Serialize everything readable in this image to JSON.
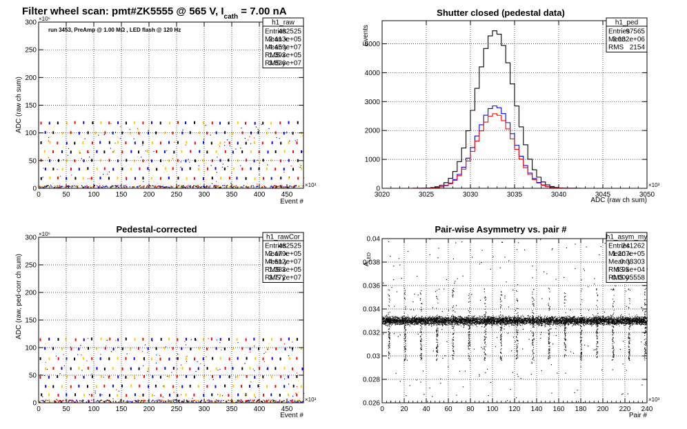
{
  "page": {
    "title_prefix": "Filter wheel scan: pmt#ZK5555 @   565 V, I",
    "title_sub": "cath",
    "title_suffix": " = 7.00 nA"
  },
  "chart_data": [
    {
      "id": "raw",
      "type": "scatter",
      "annotation": "run 3453, PreAmp @ 1.00 MΩ , LED flash @  120 Hz",
      "xlabel": "Event #",
      "ylabel": "ADC (raw ch sum)",
      "xlim": [
        0,
        480
      ],
      "ylim": [
        0,
        300
      ],
      "x_exponent": "×10³",
      "y_exponent": "×10⁶",
      "xticks": [
        0,
        50,
        100,
        150,
        200,
        250,
        300,
        350,
        400,
        450
      ],
      "yticks": [
        0,
        50,
        100,
        150,
        200,
        250,
        300
      ],
      "grid": true,
      "stats": {
        "name": "h1_raw",
        "rows": [
          [
            "Entries",
            "482525"
          ],
          [
            "Mean x",
            "2.413e+05"
          ],
          [
            "Mean y",
            "4.459e+07"
          ],
          [
            "RMS x",
            "1.393e+05"
          ],
          [
            "RMS y",
            "3.836e+07"
          ]
        ]
      },
      "levels": [
        118,
        100,
        82,
        66,
        50,
        35,
        18
      ],
      "period": 15.5,
      "series_colors": [
        "#ff0000",
        "#0000ff",
        "#000000",
        "#ffcc00"
      ]
    },
    {
      "id": "ped",
      "type": "histogram",
      "title": "Shutter closed (pedestal data)",
      "xlabel": "ADC (raw ch sum)",
      "ylabel": "Events",
      "xlim": [
        3020,
        3050
      ],
      "ylim": [
        0,
        5800
      ],
      "x_exponent": "×10³",
      "xticks": [
        3020,
        3025,
        3030,
        3035,
        3040,
        3045,
        3050
      ],
      "yticks": [
        0,
        1000,
        2000,
        3000,
        4000,
        5000
      ],
      "grid": true,
      "stats": {
        "name": "h1_ped",
        "rows": [
          [
            "Entries",
            "97565"
          ],
          [
            "Mean",
            "3.032e+06"
          ],
          [
            "RMS",
            "2154"
          ]
        ]
      },
      "series": [
        {
          "color": "#000000",
          "mean": 3032.8,
          "sigma": 2.15,
          "peak": 5450
        },
        {
          "color": "#0000ff",
          "mean": 3032.8,
          "sigma": 2.15,
          "peak": 2850
        },
        {
          "color": "#ff0000",
          "mean": 3032.8,
          "sigma": 2.15,
          "peak": 2580
        }
      ]
    },
    {
      "id": "rawCor",
      "type": "scatter",
      "title": "Pedestal-corrected",
      "xlabel": "Event #",
      "ylabel": "ADC (raw, ped-corr ch sum)",
      "xlim": [
        0,
        480
      ],
      "ylim": [
        0,
        300
      ],
      "x_exponent": "×10³",
      "y_exponent": "×10⁶",
      "xticks": [
        0,
        50,
        100,
        150,
        200,
        250,
        300,
        350,
        400,
        450
      ],
      "yticks": [
        0,
        50,
        100,
        150,
        200,
        250,
        300
      ],
      "grid": true,
      "stats": {
        "name": "h1_rawCor",
        "rows": [
          [
            "Entries",
            "482525"
          ],
          [
            "Mean x",
            "2.479e+05"
          ],
          [
            "Mean y",
            "4.612e+07"
          ],
          [
            "RMS x",
            "1.383e+05"
          ],
          [
            "RMS y",
            "3.772e+07"
          ]
        ]
      },
      "levels": [
        115,
        98,
        80,
        62,
        47,
        30,
        14
      ],
      "period": 15.5,
      "series_colors": [
        "#ff0000",
        "#0000ff",
        "#000000",
        "#ffcc00"
      ]
    },
    {
      "id": "asym",
      "type": "scatter",
      "title": "Pair-wise Asymmetry vs. pair #",
      "xlabel": "Pair #",
      "ylabel": "A",
      "ylabel_sub": "LED",
      "xlim": [
        0,
        240
      ],
      "ylim": [
        0.026,
        0.04
      ],
      "x_exponent": "×10³",
      "xticks": [
        0,
        20,
        40,
        60,
        80,
        100,
        120,
        140,
        160,
        180,
        200,
        220,
        240
      ],
      "yticks": [
        0.026,
        0.028,
        0.03,
        0.032,
        0.034,
        0.036,
        0.038,
        0.04
      ],
      "ytick_labels": [
        "0.026",
        "0.028",
        "0.03",
        "0.032",
        "0.034",
        "0.036",
        "0.038",
        "0.04"
      ],
      "grid": true,
      "stats": {
        "name": "h1_asym_my",
        "rows": [
          [
            "Entries",
            "241262"
          ],
          [
            "Mean x",
            "1.207e+05"
          ],
          [
            "Mean y",
            "0.03303"
          ],
          [
            "RMS x",
            "6.95e+04"
          ],
          [
            "RMS y",
            "0.0005558"
          ]
        ]
      },
      "band_center": 0.03303,
      "band_half": 0.0006,
      "spike_period": 14.5
    }
  ]
}
